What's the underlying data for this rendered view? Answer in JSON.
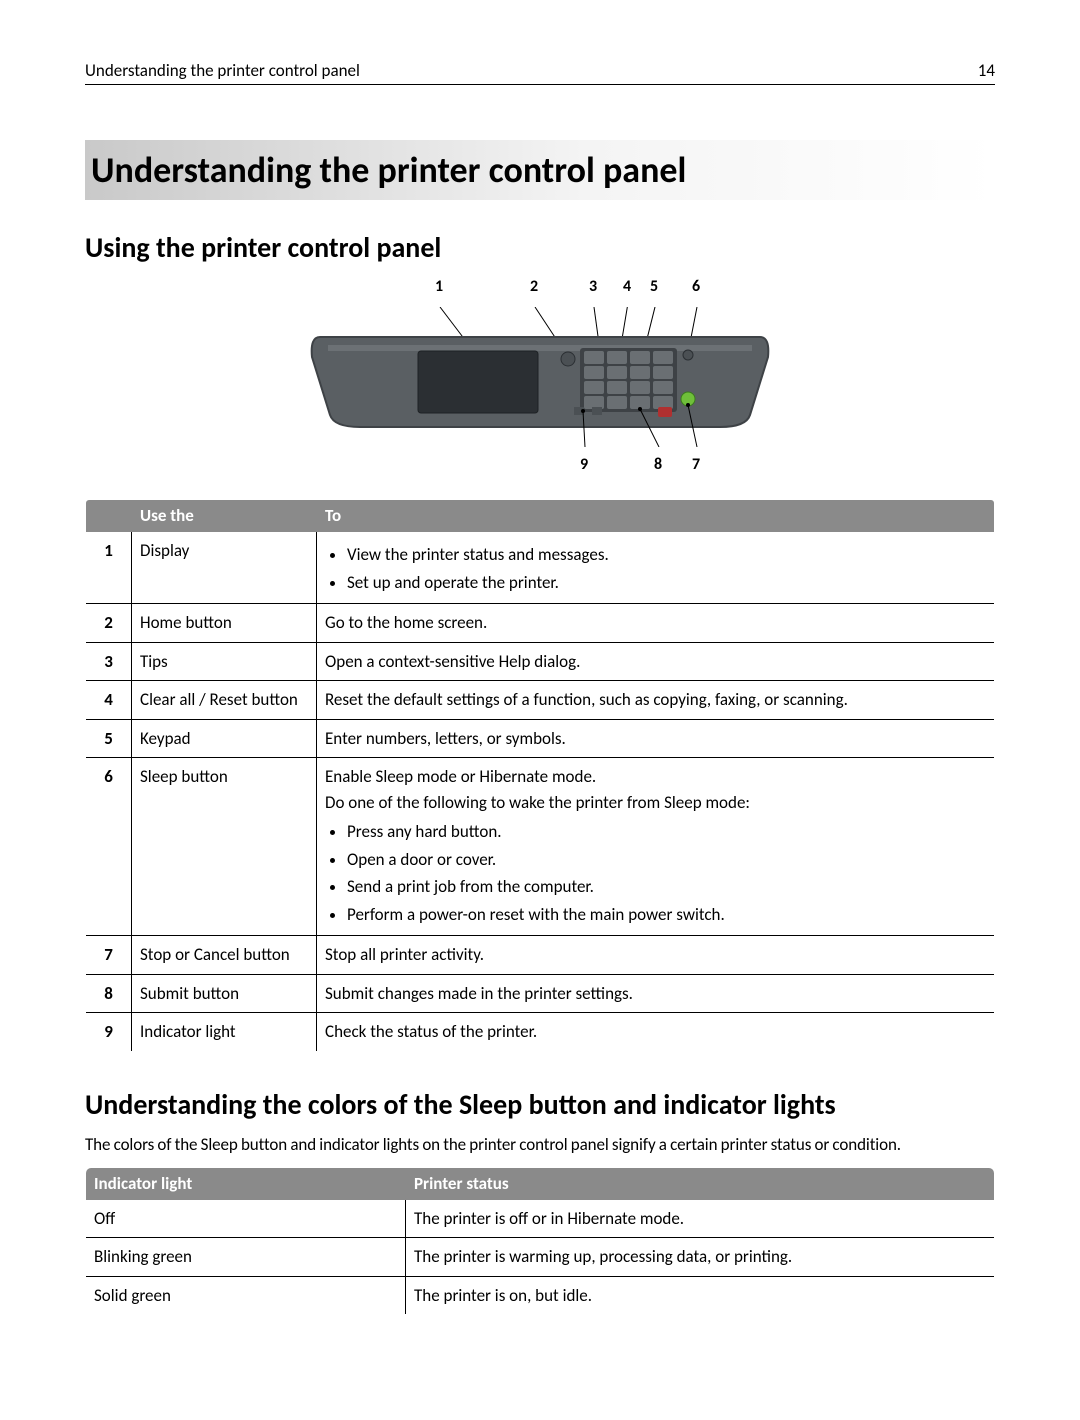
{
  "header": {
    "title": "Understanding the printer control panel",
    "page": "14"
  },
  "h1": "Understanding the printer control panel",
  "sectionA": {
    "title": "Using the printer control panel",
    "topCallouts": [
      "1",
      "2",
      "3",
      "4",
      "5",
      "6"
    ],
    "bottomCallouts": [
      "9",
      "8",
      "7"
    ],
    "table": {
      "head": {
        "num": "",
        "use": "Use the",
        "to": "To"
      },
      "rows": [
        {
          "num": "1",
          "name": "Display",
          "to_list": [
            "View the printer status and messages.",
            "Set up and operate the printer."
          ]
        },
        {
          "num": "2",
          "name": "Home button",
          "to_text": "Go to the home screen."
        },
        {
          "num": "3",
          "name": "Tips",
          "to_text": "Open a context-sensitive Help dialog."
        },
        {
          "num": "4",
          "name": "Clear all / Reset button",
          "to_text": "Reset the default settings of a function, such as copying, faxing, or scanning."
        },
        {
          "num": "5",
          "name": "Keypad",
          "to_text": "Enter numbers, letters, or symbols."
        },
        {
          "num": "6",
          "name": "Sleep button",
          "to_pre": [
            "Enable Sleep mode or Hibernate mode.",
            "Do one of the following to wake the printer from Sleep mode:"
          ],
          "to_list": [
            "Press any hard button.",
            "Open a door or cover.",
            "Send a print job from the computer.",
            "Perform a power-on reset with the main power switch."
          ]
        },
        {
          "num": "7",
          "name": "Stop or Cancel button",
          "to_text": "Stop all printer activity."
        },
        {
          "num": "8",
          "name": "Submit button",
          "to_text": "Submit changes made in the printer settings."
        },
        {
          "num": "9",
          "name": "Indicator light",
          "to_text": "Check the status of the printer."
        }
      ]
    }
  },
  "sectionB": {
    "title": "Understanding the colors of the Sleep button and indicator lights",
    "body": "The colors of the Sleep button and indicator lights on the printer control panel signify a certain printer status or condition.",
    "table": {
      "head": {
        "a": "Indicator light",
        "b": "Printer status"
      },
      "rows": [
        {
          "a": "Off",
          "b": "The printer is off or in Hibernate mode."
        },
        {
          "a": "Blinking green",
          "b": "The printer is warming up, processing data, or printing."
        },
        {
          "a": "Solid green",
          "b": "The printer is on, but idle."
        }
      ]
    }
  },
  "illus": {
    "body_fill": "#5a5f63",
    "body_dark": "#3e4246",
    "screen": "#2b2f33",
    "keypad_fill": "#4b5054",
    "key_fill": "#6a6f73",
    "key_text": "#c9cdd0",
    "green_led": "#6fbf3a",
    "red_btn": "#b03030",
    "leader": "#000000"
  }
}
